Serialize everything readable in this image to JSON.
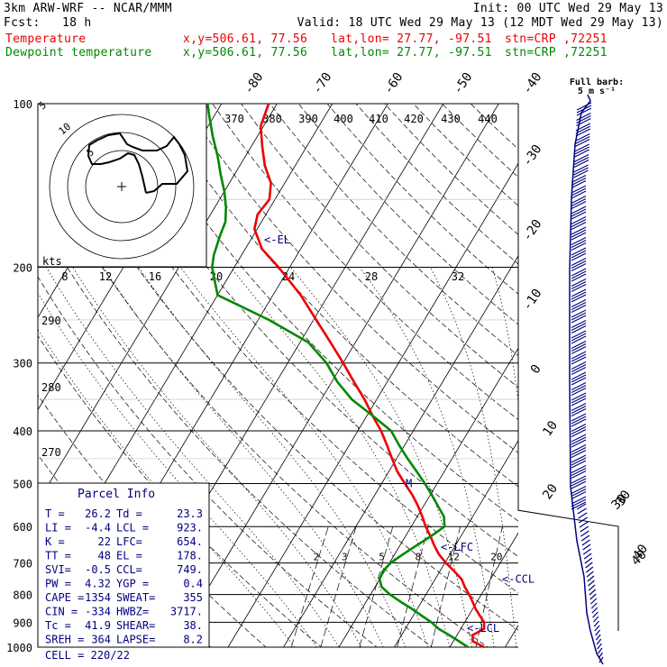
{
  "header": {
    "model": "3km ARW-WRF -- NCAR/MMM",
    "init": "Init: 00 UTC Wed 29 May 13",
    "fcst": "Fcst:   18 h",
    "valid": "Valid: 18 UTC Wed 29 May 13 (12 MDT Wed 29 May 13)",
    "rows": [
      {
        "label": "Temperature",
        "xy": "x,y=506.61, 77.56",
        "latlon": "lat,lon= 27.77, -97.51",
        "stn": "stn=CRP ,72251",
        "color": "#ee0000"
      },
      {
        "label": "Dewpoint temperature",
        "xy": "x,y=506.61, 77.56",
        "latlon": "lat,lon= 27.77, -97.51",
        "stn": "stn=CRP ,72251",
        "color": "#008800"
      }
    ]
  },
  "chart_data": {
    "type": "line",
    "title": "Skew-T log-P sounding",
    "y_axis": {
      "name": "pressure (hPa)",
      "scale": "log",
      "range": [
        1000,
        100
      ],
      "ticks": [
        100,
        200,
        300,
        400,
        500,
        600,
        700,
        800,
        900,
        1000
      ]
    },
    "x_axis": {
      "name": "temperature (C), skewed",
      "isotherm_labels": [
        -80,
        -70,
        -60,
        -50,
        -40,
        -30,
        -20,
        -10,
        0,
        10,
        20,
        30,
        40
      ]
    },
    "series": [
      {
        "name": "Temperature",
        "color": "#ee0000",
        "points": [
          [
            1000,
            26.2
          ],
          [
            975,
            23.5
          ],
          [
            950,
            22.8
          ],
          [
            925,
            24.2
          ],
          [
            900,
            23.5
          ],
          [
            875,
            22.0
          ],
          [
            850,
            20.5
          ],
          [
            825,
            19.2
          ],
          [
            800,
            17.8
          ],
          [
            775,
            16.2
          ],
          [
            750,
            14.8
          ],
          [
            725,
            12.6
          ],
          [
            700,
            10.2
          ],
          [
            675,
            8.0
          ],
          [
            650,
            6.2
          ],
          [
            625,
            4.5
          ],
          [
            600,
            2.6
          ],
          [
            575,
            0.9
          ],
          [
            550,
            -1.0
          ],
          [
            525,
            -3.2
          ],
          [
            500,
            -5.8
          ],
          [
            475,
            -8.5
          ],
          [
            450,
            -10.8
          ],
          [
            425,
            -13.2
          ],
          [
            400,
            -15.8
          ],
          [
            375,
            -19.0
          ],
          [
            350,
            -22.2
          ],
          [
            325,
            -26.0
          ],
          [
            300,
            -30.0
          ],
          [
            275,
            -34.5
          ],
          [
            250,
            -39.5
          ],
          [
            225,
            -45.0
          ],
          [
            200,
            -52.0
          ],
          [
            185,
            -57.0
          ],
          [
            170,
            -60.5
          ],
          [
            160,
            -61.5
          ],
          [
            150,
            -61.0
          ],
          [
            140,
            -62.5
          ],
          [
            130,
            -65.5
          ],
          [
            120,
            -68.0
          ],
          [
            110,
            -70.5
          ],
          [
            105,
            -71.0
          ],
          [
            100,
            -71.5
          ]
        ]
      },
      {
        "name": "Dewpoint temperature",
        "color": "#008800",
        "points": [
          [
            1000,
            23.3
          ],
          [
            975,
            21.0
          ],
          [
            950,
            18.6
          ],
          [
            925,
            16.0
          ],
          [
            900,
            14.0
          ],
          [
            875,
            11.5
          ],
          [
            850,
            9.0
          ],
          [
            825,
            6.2
          ],
          [
            800,
            3.5
          ],
          [
            775,
            1.2
          ],
          [
            750,
            0.0
          ],
          [
            725,
            -0.3
          ],
          [
            700,
            0.2
          ],
          [
            675,
            1.5
          ],
          [
            650,
            3.0
          ],
          [
            625,
            4.6
          ],
          [
            600,
            6.0
          ],
          [
            575,
            4.8
          ],
          [
            550,
            2.6
          ],
          [
            525,
            0.3
          ],
          [
            500,
            -2.2
          ],
          [
            475,
            -5.0
          ],
          [
            450,
            -8.0
          ],
          [
            425,
            -11.0
          ],
          [
            400,
            -14.0
          ],
          [
            375,
            -19.0
          ],
          [
            350,
            -24.5
          ],
          [
            325,
            -29.0
          ],
          [
            300,
            -33.0
          ],
          [
            275,
            -38.5
          ],
          [
            250,
            -48.0
          ],
          [
            225,
            -60.0
          ],
          [
            200,
            -64.0
          ],
          [
            190,
            -65.0
          ],
          [
            175,
            -66.0
          ],
          [
            165,
            -66.5
          ],
          [
            155,
            -68.0
          ],
          [
            145,
            -70.0
          ],
          [
            135,
            -72.5
          ],
          [
            125,
            -75.0
          ],
          [
            115,
            -78.0
          ],
          [
            105,
            -81.0
          ],
          [
            100,
            -82.5
          ]
        ]
      }
    ],
    "mixing_ratio_labels": [
      2,
      3,
      5,
      8,
      12,
      20
    ],
    "theta_labels_left": [
      270,
      280,
      290
    ],
    "theta_labels_top": [
      370,
      380,
      390,
      400,
      410,
      420,
      430,
      440
    ],
    "markers": [
      {
        "label": "<-EL",
        "p": 178
      },
      {
        "label": "<-LFC",
        "p": 654
      },
      {
        "label": "<-CCL",
        "p": 749
      },
      {
        "label": "<-LCL",
        "p": 923
      },
      {
        "label": "M",
        "p": 500
      }
    ],
    "wind_barbs_header": {
      "line1": "Full barb:",
      "line2": "5 m s⁻¹"
    },
    "wind_profile_labels": [
      30,
      40
    ],
    "hodograph": {
      "speed_labels": [
        8,
        12,
        16,
        20,
        24,
        28,
        32
      ],
      "unit": "kts",
      "ring_labels": [
        5,
        10,
        5
      ]
    }
  },
  "parcel_info": {
    "title": "Parcel Info",
    "rows": [
      [
        "T  =",
        "26.2",
        "Td =",
        "23.3"
      ],
      [
        "LI =",
        "-4.4",
        "LCL =",
        "923."
      ],
      [
        "K  =",
        "22",
        "LFC=",
        "654."
      ],
      [
        "TT =",
        "48",
        "EL =",
        "178."
      ],
      [
        "SVI=",
        "-0.5",
        "CCL=",
        "749."
      ],
      [
        "PW =",
        "4.32",
        "YGP =",
        "0.4"
      ],
      [
        "CAPE =",
        "1354",
        "SWEAT=",
        "355"
      ],
      [
        "CIN =",
        "-334",
        "HWBZ=",
        "3717."
      ],
      [
        "Tc =",
        "41.9",
        "SHEAR=",
        "38."
      ],
      [
        "SREH =",
        "364",
        "LAPSE=",
        "8.2"
      ]
    ],
    "cell": "CELL = 220/22"
  }
}
